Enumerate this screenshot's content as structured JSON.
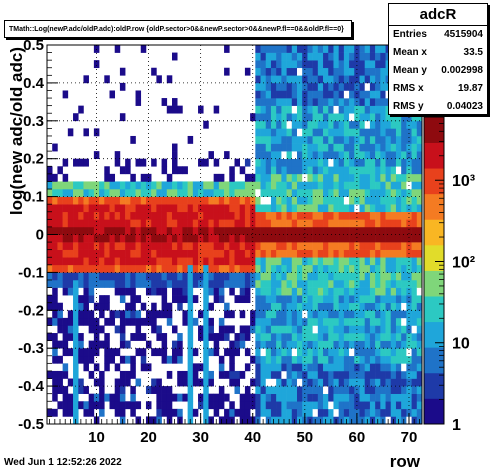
{
  "chart_data": {
    "type": "heatmap",
    "title": "TMath::Log(newP.adc/oldP.adc):oldP.row {oldP.sector>0&&newP.sector>0&&newP.fl==0&&oldP.fl==0}",
    "xlabel": "row",
    "ylabel": "log(new adc/old adc)",
    "xlim": [
      0.5,
      72.5
    ],
    "ylim": [
      -0.5,
      0.5
    ],
    "zlim": [
      1,
      6000
    ],
    "z_log_scale": true,
    "x_ticks": [
      "10",
      "20",
      "30",
      "40",
      "50",
      "60",
      "70"
    ],
    "y_ticks": [
      "-0.5",
      "-0.4",
      "-0.3",
      "-0.2",
      "-0.1",
      "0",
      "0.1",
      "0.2",
      "0.3",
      "0.4",
      "0.5"
    ],
    "z_ticks": [
      "1",
      "10",
      "10²",
      "10³"
    ],
    "grid": true,
    "palette": [
      "#1b0b8a",
      "#1e3aa8",
      "#1f73c8",
      "#1fa6da",
      "#2cc9c2",
      "#7fd67a",
      "#e1dc2a",
      "#f9b623",
      "#f47b22",
      "#e8411c",
      "#c8101b",
      "#8e0a0f"
    ],
    "stats": {
      "name": "adcR",
      "entries_label": "Entries",
      "entries": "4515904",
      "meanx_label": "Mean x",
      "meanx": "33.5",
      "meany_label": "Mean y",
      "meany": "0.002998",
      "rmsx_label": "RMS x",
      "rmsx": "19.87",
      "rmsy_label": "RMS y",
      "rmsy": "0.04023"
    },
    "regions": {
      "inner_rows": [
        1,
        40
      ],
      "outer_rows": [
        41,
        72
      ],
      "inner_core_halfwidth": 0.1,
      "outer_core_halfwidth": 0.02
    }
  },
  "footer": "Wed Jun  1 12:52:26 2022"
}
